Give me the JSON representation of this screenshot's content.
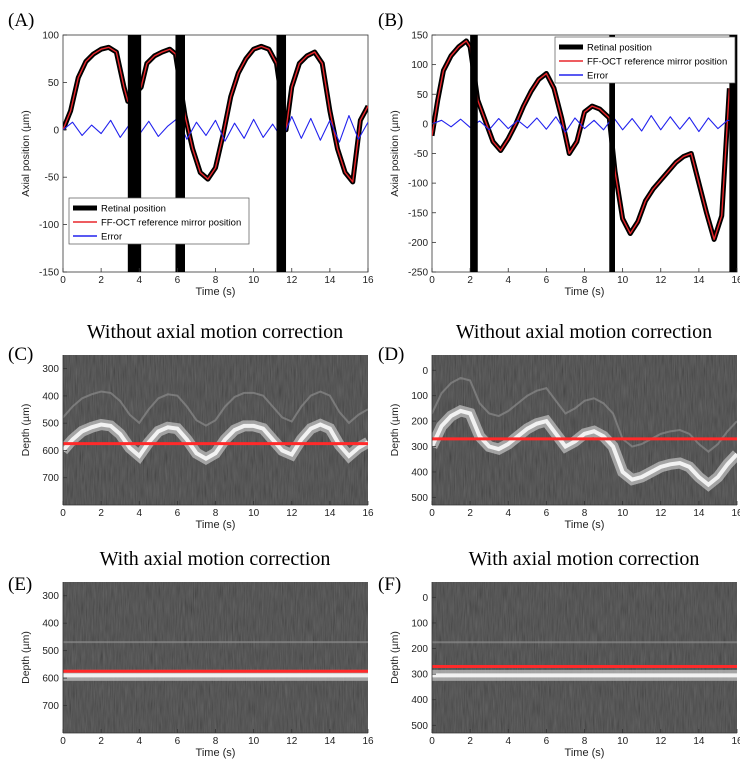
{
  "colors": {
    "retinal": "#000000",
    "mirror": "#e8262b",
    "error": "#2222ee",
    "refline": "#ff2a2a",
    "axis": "#333333"
  },
  "chart_data": [
    {
      "id": "A",
      "type": "line",
      "panel_label": "(A)",
      "title": "",
      "xlabel": "Time (s)",
      "ylabel": "Axial position (µm)",
      "xlim": [
        0,
        16
      ],
      "ylim": [
        -150,
        100
      ],
      "xticks": [
        0,
        2,
        4,
        6,
        8,
        10,
        12,
        14,
        16
      ],
      "yticks": [
        100,
        50,
        0,
        -50,
        -100,
        -150
      ],
      "grid": false,
      "legend_position": "lower-left",
      "blackout_intervals": [
        [
          3.4,
          4.1
        ],
        [
          5.9,
          6.4
        ],
        [
          11.2,
          11.7
        ]
      ],
      "series": [
        {
          "name": "Retinal position",
          "color": "#000000",
          "x": [
            0,
            0.4,
            0.8,
            1.2,
            1.6,
            2.0,
            2.4,
            2.8,
            3.2,
            3.4,
            4.1,
            4.4,
            4.8,
            5.2,
            5.6,
            5.9,
            6.4,
            6.8,
            7.2,
            7.6,
            8.0,
            8.4,
            8.8,
            9.2,
            9.6,
            10.0,
            10.4,
            10.8,
            11.2,
            11.7,
            12.0,
            12.4,
            12.8,
            13.2,
            13.6,
            14.0,
            14.4,
            14.8,
            15.2,
            15.6,
            16.0
          ],
          "y": [
            0,
            20,
            55,
            72,
            80,
            85,
            87,
            82,
            45,
            30,
            45,
            70,
            78,
            82,
            85,
            80,
            15,
            -20,
            -45,
            -52,
            -40,
            -5,
            35,
            60,
            75,
            85,
            88,
            85,
            70,
            0,
            45,
            70,
            78,
            82,
            70,
            20,
            -20,
            -45,
            -55,
            10,
            25
          ]
        },
        {
          "name": "FF-OCT reference mirror position",
          "color": "#e8262b",
          "x": [
            0,
            0.4,
            0.8,
            1.2,
            1.6,
            2.0,
            2.4,
            2.8,
            3.2,
            3.4,
            4.1,
            4.4,
            4.8,
            5.2,
            5.6,
            5.9,
            6.4,
            6.8,
            7.2,
            7.6,
            8.0,
            8.4,
            8.8,
            9.2,
            9.6,
            10.0,
            10.4,
            10.8,
            11.2,
            11.7,
            12.0,
            12.4,
            12.8,
            13.2,
            13.6,
            14.0,
            14.4,
            14.8,
            15.2,
            15.6,
            16.0
          ],
          "y": [
            0,
            20,
            55,
            72,
            80,
            85,
            87,
            82,
            45,
            30,
            45,
            70,
            78,
            82,
            85,
            80,
            15,
            -20,
            -45,
            -52,
            -40,
            -5,
            35,
            60,
            75,
            85,
            88,
            85,
            70,
            0,
            45,
            70,
            78,
            82,
            70,
            20,
            -20,
            -45,
            -55,
            10,
            25
          ]
        },
        {
          "name": "Error",
          "color": "#2222ee",
          "x": [
            0,
            0.5,
            1.0,
            1.5,
            2.0,
            2.5,
            3.0,
            3.5,
            4.0,
            4.5,
            5.0,
            5.5,
            6.0,
            6.5,
            7.0,
            7.5,
            8.0,
            8.5,
            9.0,
            9.5,
            10.0,
            10.5,
            11.0,
            11.5,
            12.0,
            12.5,
            13.0,
            13.5,
            14.0,
            14.5,
            15.0,
            15.5,
            16.0
          ],
          "y": [
            0,
            8,
            -6,
            5,
            -4,
            10,
            -8,
            6,
            -5,
            9,
            -7,
            4,
            12,
            -10,
            8,
            -6,
            10,
            -12,
            7,
            -9,
            11,
            -8,
            6,
            -10,
            14,
            -9,
            12,
            -11,
            10,
            -13,
            15,
            -10,
            8
          ]
        }
      ]
    },
    {
      "id": "B",
      "type": "line",
      "panel_label": "(B)",
      "title": "",
      "xlabel": "Time (s)",
      "ylabel": "Axial position (µm)",
      "xlim": [
        0,
        16
      ],
      "ylim": [
        -250,
        150
      ],
      "xticks": [
        0,
        2,
        4,
        6,
        8,
        10,
        12,
        14,
        16
      ],
      "yticks": [
        150,
        100,
        50,
        0,
        -50,
        -100,
        -150,
        -200,
        -250
      ],
      "grid": false,
      "legend_position": "top-right",
      "blackout_intervals": [
        [
          2.0,
          2.4
        ],
        [
          9.3,
          9.6
        ],
        [
          15.6,
          16.0
        ]
      ],
      "series": [
        {
          "name": "Retinal position",
          "color": "#000000",
          "x": [
            0,
            0.3,
            0.6,
            1.0,
            1.4,
            1.8,
            2.0,
            2.4,
            2.8,
            3.2,
            3.6,
            4.0,
            4.4,
            4.8,
            5.2,
            5.6,
            6.0,
            6.4,
            6.8,
            7.2,
            7.6,
            8.0,
            8.4,
            8.8,
            9.3,
            9.6,
            10.0,
            10.4,
            10.8,
            11.2,
            11.6,
            12.0,
            12.4,
            12.8,
            13.2,
            13.6,
            14.0,
            14.4,
            14.8,
            15.2,
            15.6
          ],
          "y": [
            -20,
            40,
            90,
            115,
            130,
            140,
            130,
            40,
            5,
            -30,
            -45,
            -25,
            0,
            30,
            55,
            75,
            85,
            60,
            10,
            -50,
            -30,
            20,
            30,
            25,
            10,
            -80,
            -160,
            -185,
            -165,
            -130,
            -110,
            -95,
            -80,
            -65,
            -55,
            -50,
            -100,
            -150,
            -195,
            -155,
            60
          ]
        },
        {
          "name": "FF-OCT reference mirror position",
          "color": "#e8262b",
          "x": [
            0,
            0.3,
            0.6,
            1.0,
            1.4,
            1.8,
            2.0,
            2.4,
            2.8,
            3.2,
            3.6,
            4.0,
            4.4,
            4.8,
            5.2,
            5.6,
            6.0,
            6.4,
            6.8,
            7.2,
            7.6,
            8.0,
            8.4,
            8.8,
            9.3,
            9.6,
            10.0,
            10.4,
            10.8,
            11.2,
            11.6,
            12.0,
            12.4,
            12.8,
            13.2,
            13.6,
            14.0,
            14.4,
            14.8,
            15.2,
            15.6
          ],
          "y": [
            -20,
            40,
            90,
            115,
            130,
            140,
            130,
            40,
            5,
            -30,
            -45,
            -25,
            0,
            30,
            55,
            75,
            85,
            60,
            10,
            -50,
            -30,
            20,
            30,
            25,
            10,
            -80,
            -160,
            -185,
            -165,
            -130,
            -110,
            -95,
            -80,
            -65,
            -55,
            -50,
            -100,
            -150,
            -195,
            -155,
            60
          ]
        },
        {
          "name": "Error",
          "color": "#2222ee",
          "x": [
            0,
            0.5,
            1.0,
            1.5,
            2.0,
            2.5,
            3.0,
            3.5,
            4.0,
            4.5,
            5.0,
            5.5,
            6.0,
            6.5,
            7.0,
            7.5,
            8.0,
            8.5,
            9.0,
            9.5,
            10.0,
            10.5,
            11.0,
            11.5,
            12.0,
            12.5,
            13.0,
            13.5,
            14.0,
            14.5,
            15.0,
            15.5,
            16.0
          ],
          "y": [
            0,
            6,
            -5,
            8,
            -6,
            5,
            -10,
            9,
            -8,
            6,
            -7,
            10,
            -9,
            12,
            -14,
            10,
            -8,
            6,
            -10,
            12,
            -10,
            9,
            -12,
            14,
            -10,
            12,
            -9,
            11,
            -13,
            10,
            -8,
            6,
            4
          ]
        }
      ]
    },
    {
      "id": "C",
      "type": "heatmap",
      "panel_label": "(C)",
      "title": "Without axial motion correction",
      "xlabel": "Time (s)",
      "ylabel": "Depth (µm)",
      "xlim": [
        0,
        16
      ],
      "ylim": [
        250,
        800
      ],
      "y_inverted": true,
      "xticks": [
        0,
        2,
        4,
        6,
        8,
        10,
        12,
        14,
        16
      ],
      "xtick_labels": [
        "0",
        "2",
        "4",
        "6",
        "8",
        "10",
        "12",
        "14",
        "16"
      ],
      "yticks": [
        300,
        400,
        500,
        600,
        700
      ],
      "reference_depth": 575,
      "bright_layer": {
        "x": [
          0,
          0.5,
          1.0,
          1.5,
          2.0,
          2.5,
          3.0,
          3.5,
          4.0,
          4.5,
          5.0,
          5.5,
          6.0,
          6.5,
          7.0,
          7.5,
          8.0,
          8.5,
          9.0,
          9.5,
          10.0,
          10.5,
          11.0,
          11.5,
          12.0,
          12.5,
          13.0,
          13.5,
          14.0,
          14.5,
          15.0,
          15.5,
          16.0
        ],
        "y": [
          600,
          560,
          530,
          515,
          505,
          510,
          540,
          590,
          620,
          570,
          530,
          515,
          520,
          560,
          610,
          630,
          610,
          560,
          525,
          510,
          510,
          520,
          560,
          600,
          615,
          560,
          520,
          505,
          520,
          580,
          620,
          590,
          570
        ]
      }
    },
    {
      "id": "D",
      "type": "heatmap",
      "panel_label": "(D)",
      "title": "Without axial motion correction",
      "xlabel": "Time (s)",
      "ylabel": "Depth (µm)",
      "xlim": [
        0,
        16
      ],
      "ylim": [
        -60,
        530
      ],
      "y_inverted": true,
      "xticks": [
        0,
        2,
        4,
        6,
        8,
        10,
        12,
        14,
        16
      ],
      "xtick_labels": [
        "0",
        "2",
        "4",
        "6",
        "8",
        "10",
        "12",
        "14",
        "16"
      ],
      "yticks": [
        0,
        100,
        200,
        300,
        400,
        500
      ],
      "reference_depth": 270,
      "bright_layer": {
        "x": [
          0,
          0.5,
          1.0,
          1.5,
          2.0,
          2.5,
          3.0,
          3.5,
          4.0,
          4.5,
          5.0,
          5.5,
          6.0,
          6.5,
          7.0,
          7.5,
          8.0,
          8.5,
          9.0,
          9.5,
          10.0,
          10.5,
          11.0,
          11.5,
          12.0,
          12.5,
          13.0,
          13.5,
          14.0,
          14.5,
          15.0,
          15.5,
          16.0
        ],
        "y": [
          300,
          220,
          180,
          160,
          170,
          260,
          300,
          310,
          290,
          260,
          230,
          210,
          200,
          250,
          300,
          280,
          250,
          240,
          260,
          300,
          400,
          430,
          420,
          400,
          380,
          370,
          365,
          380,
          420,
          450,
          420,
          370,
          330
        ]
      }
    },
    {
      "id": "E",
      "type": "heatmap",
      "panel_label": "(E)",
      "title": "With axial motion correction",
      "xlabel": "Time (s)",
      "ylabel": "Depth (µm)",
      "xlim": [
        0,
        16
      ],
      "ylim": [
        250,
        800
      ],
      "y_inverted": true,
      "xticks": [
        0,
        2,
        4,
        6,
        8,
        10,
        12,
        14,
        16
      ],
      "xtick_labels": [
        "0",
        "2",
        "4",
        "6",
        "8",
        "10",
        "12",
        "14",
        "16"
      ],
      "yticks": [
        300,
        400,
        500,
        600,
        700
      ],
      "reference_depth": 575,
      "bright_layer": {
        "x": [
          0,
          16
        ],
        "y": [
          590,
          590
        ]
      }
    },
    {
      "id": "F",
      "type": "heatmap",
      "panel_label": "(F)",
      "title": "With axial motion correction",
      "xlabel": "Time (s)",
      "ylabel": "Depth (µm)",
      "xlim": [
        0,
        16
      ],
      "ylim": [
        -60,
        530
      ],
      "y_inverted": true,
      "xticks": [
        0,
        2,
        4,
        6,
        8,
        10,
        12,
        14,
        16
      ],
      "xtick_labels": [
        "0",
        "2",
        "4",
        "6",
        "8",
        "10",
        "12",
        "14",
        "16"
      ],
      "yticks": [
        0,
        100,
        200,
        300,
        400,
        500
      ],
      "reference_depth": 270,
      "bright_layer": {
        "x": [
          0,
          16
        ],
        "y": [
          305,
          305
        ]
      }
    }
  ]
}
